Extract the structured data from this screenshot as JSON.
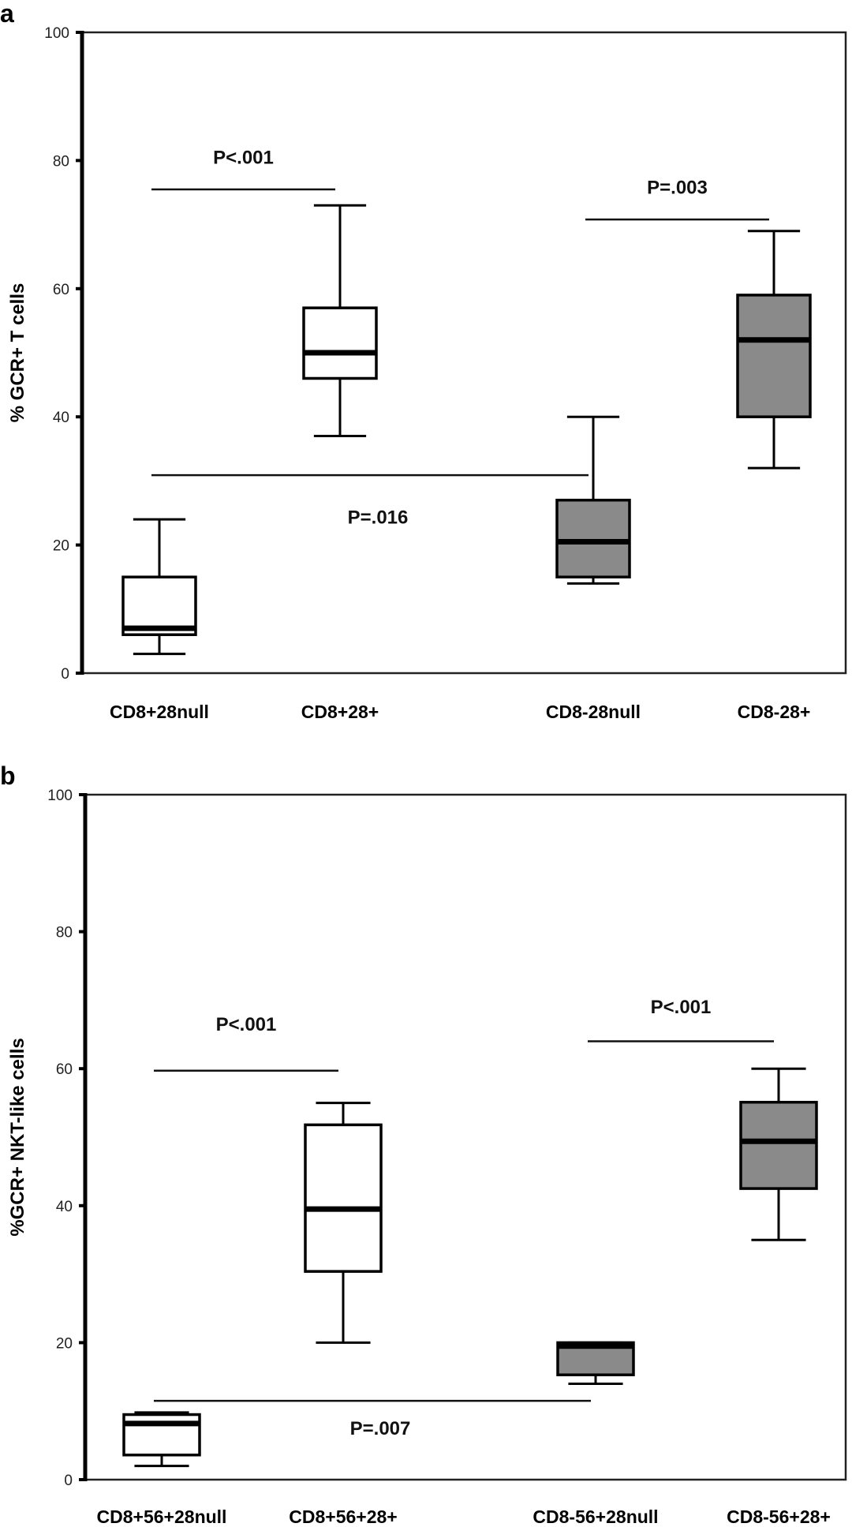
{
  "chart_data": [
    {
      "type": "box",
      "panel_label": "a",
      "ylabel": "% GCR+ T cells",
      "ylim": [
        0,
        100
      ],
      "yticks": [
        0,
        20,
        40,
        60,
        80,
        100
      ],
      "grid": false,
      "categories": [
        "CD8+28null",
        "CD8+28+",
        "CD8-28null",
        "CD8-28+"
      ],
      "boxes": [
        {
          "category": "CD8+28null",
          "whisker_low": 3,
          "q1": 6,
          "median": 7,
          "q3": 15,
          "whisker_high": 24,
          "fill": "#ffffff"
        },
        {
          "category": "CD8+28+",
          "whisker_low": 37,
          "q1": 46,
          "median": 50,
          "q3": 57,
          "whisker_high": 73,
          "fill": "#ffffff"
        },
        {
          "category": "CD8-28null",
          "whisker_low": 14,
          "q1": 15,
          "median": 20.5,
          "q3": 27,
          "whisker_high": 40,
          "fill": "#8a8a8a"
        },
        {
          "category": "CD8-28+",
          "whisker_low": 32,
          "q1": 40,
          "median": 52,
          "q3": 59,
          "whisker_high": 69,
          "fill": "#8a8a8a"
        }
      ],
      "annotations": [
        {
          "text": "P<.001",
          "from": "CD8+28null",
          "to": "CD8+28+",
          "y": 75.5,
          "label_y": 80.5
        },
        {
          "text": "P=.003",
          "from": "CD8-28null",
          "to": "CD8-28+",
          "y": 70.8,
          "label_y": 75.8
        },
        {
          "text": "P=.016",
          "from": "CD8+28null",
          "to": "CD8-28null",
          "y": 30.9,
          "label_y": 24.3
        }
      ]
    },
    {
      "type": "box",
      "panel_label": "b",
      "ylabel": "%GCR+ NKT-like cells",
      "ylim": [
        0,
        100
      ],
      "yticks": [
        0,
        20,
        40,
        60,
        80,
        100
      ],
      "grid": false,
      "categories": [
        "CD8+56+28null",
        "CD8+56+28+",
        "CD8-56+28null",
        "CD8-56+28+"
      ],
      "boxes": [
        {
          "category": "CD8+56+28null",
          "whisker_low": 2,
          "q1": 3.6,
          "median": 8.2,
          "q3": 9.5,
          "whisker_high": 9.8,
          "fill": "#ffffff"
        },
        {
          "category": "CD8+56+28+",
          "whisker_low": 20,
          "q1": 30.4,
          "median": 39.5,
          "q3": 51.8,
          "whisker_high": 55,
          "fill": "#ffffff"
        },
        {
          "category": "CD8-56+28null",
          "whisker_low": 14,
          "q1": 15.3,
          "median": 19.5,
          "q3": 20,
          "whisker_high": 20,
          "fill": "#8a8a8a"
        },
        {
          "category": "CD8-56+28+",
          "whisker_low": 35,
          "q1": 42.5,
          "median": 49.4,
          "q3": 55.1,
          "whisker_high": 60,
          "fill": "#8a8a8a"
        }
      ],
      "annotations": [
        {
          "text": "P<.001",
          "from": "CD8+56+28null",
          "to": "CD8+56+28+",
          "y": 59.7,
          "label_y": 66.5
        },
        {
          "text": "P<.001",
          "from": "CD8-56+28null",
          "to": "CD8-56+28+",
          "y": 64,
          "label_y": 69
        },
        {
          "text": "P=.007",
          "from": "CD8+56+28null",
          "to": "CD8-56+28null",
          "y": 11.5,
          "label_y": 7.5
        }
      ]
    }
  ]
}
